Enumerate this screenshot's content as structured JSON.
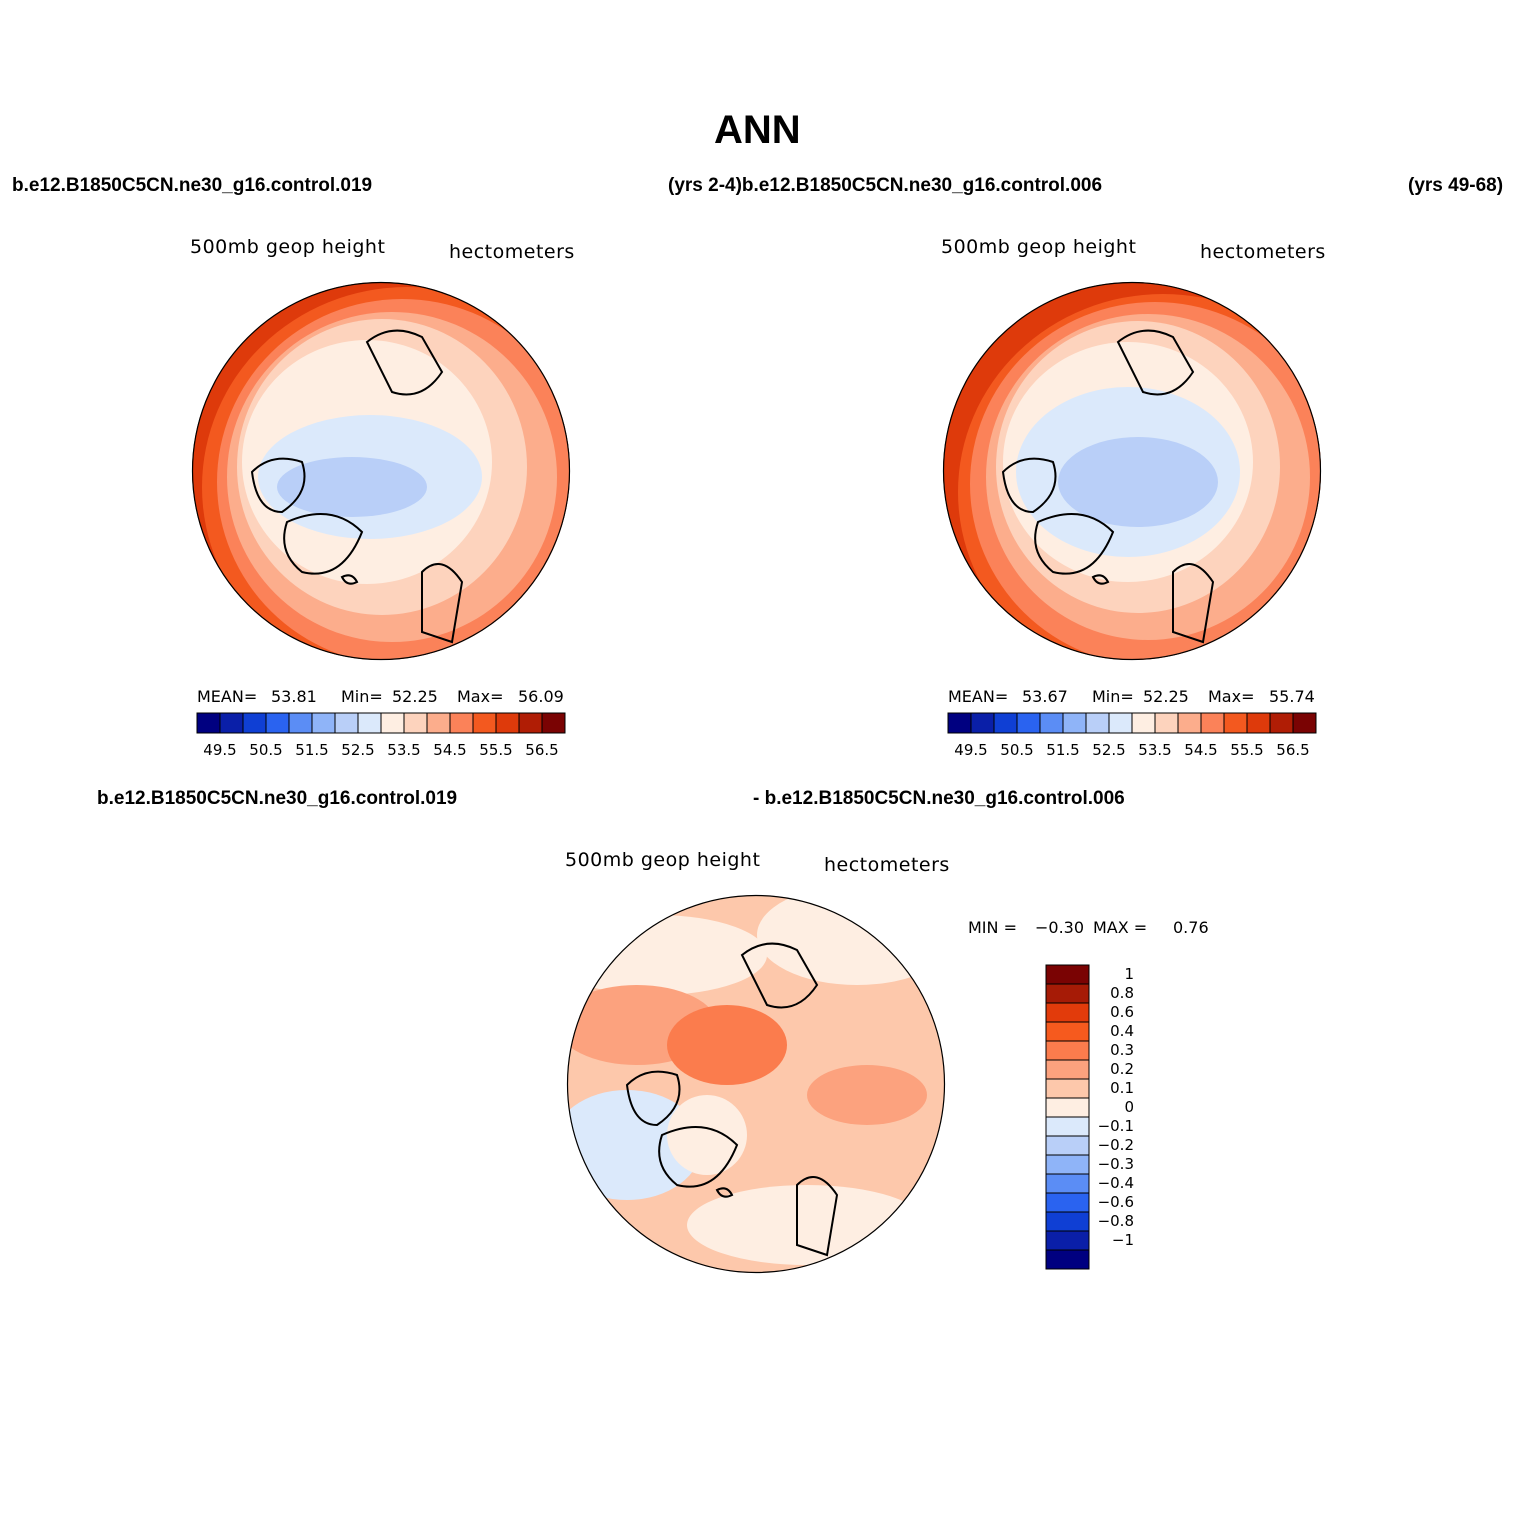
{
  "title": "ANN",
  "header": {
    "left_case": "b.e12.B1850C5CN.ne30_g16.control.019",
    "mid_case": "(yrs 2-4)b.e12.B1850C5CN.ne30_g16.control.006",
    "right_case": "(yrs 49-68)"
  },
  "panel1": {
    "variable": "500mb  geop  height",
    "units": "hectometers",
    "mean_label": "MEAN=",
    "mean": "53.81",
    "min_label": "Min=",
    "min": "52.25",
    "max_label": "Max=",
    "max": "56.09"
  },
  "panel2": {
    "variable": "500mb  geop  height",
    "units": "hectometers",
    "mean_label": "MEAN=",
    "mean": "53.67",
    "min_label": "Min=",
    "min": "52.25",
    "max_label": "Max=",
    "max": "55.74"
  },
  "diff_header": {
    "left_case": "b.e12.B1850C5CN.ne30_g16.control.019",
    "right_case": "- b.e12.B1850C5CN.ne30_g16.control.006"
  },
  "panel3": {
    "variable": "500mb  geop  height",
    "units": "hectometers",
    "min_label": "MIN =",
    "min": "−0.30",
    "max_label": "MAX =",
    "max": "0.76"
  },
  "colorbar_abs": {
    "colors": [
      "#000080",
      "#0a1fa8",
      "#0f3fd4",
      "#2a63f0",
      "#5b8df5",
      "#8fb4f8",
      "#b9cff8",
      "#dbe9fb",
      "#feeee2",
      "#fdd3bd",
      "#fcad8c",
      "#fb8259",
      "#f3591f",
      "#de3a0b",
      "#b01d05",
      "#7a0303"
    ],
    "labels": [
      "49.5",
      "50.5",
      "51.5",
      "52.5",
      "53.5",
      "54.5",
      "55.5",
      "56.5"
    ]
  },
  "colorbar_diff": {
    "colors": [
      "#7a0303",
      "#a61b06",
      "#e23b0b",
      "#f65a1e",
      "#fb7c4d",
      "#fca27e",
      "#fdc8ab",
      "#feeee2",
      "#dbe9fb",
      "#b9cff8",
      "#8fb4f8",
      "#5b8df5",
      "#2a63f0",
      "#0f3fd4",
      "#0a1fa8",
      "#000080"
    ],
    "labels": [
      "1",
      "0.8",
      "0.6",
      "0.4",
      "0.3",
      "0.2",
      "0.1",
      "0",
      "−0.1",
      "−0.2",
      "−0.3",
      "−0.4",
      "−0.6",
      "−0.8",
      "−1"
    ]
  }
}
